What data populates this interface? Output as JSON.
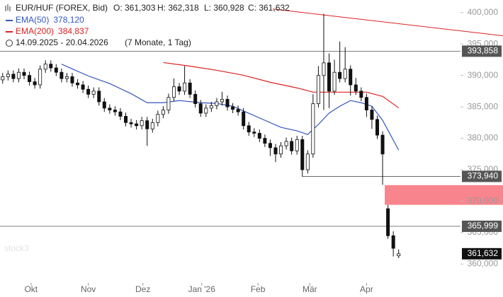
{
  "chart_data": {
    "type": "candlestick",
    "header": {
      "symbol": "EUR/HUF (FOREX, Bid)",
      "open": "O: 361,303",
      "high": "H: 362,318",
      "low": "L: 360,928",
      "close": "C: 361,632",
      "range": "14.09.2025 - 20.04.2026",
      "span": "(7 Monate, 1 Tag)"
    },
    "watermark": "stock3",
    "xlim": [
      -0.5,
      93.5
    ],
    "xticks": [
      {
        "value": 5.3,
        "label": "Okt"
      },
      {
        "value": 16,
        "label": "Nov"
      },
      {
        "value": 26.2,
        "label": "Dez"
      },
      {
        "value": 37.2,
        "label": "Jan '26"
      },
      {
        "value": 47.7,
        "label": "Feb"
      },
      {
        "value": 57.4,
        "label": "Mär"
      },
      {
        "value": 68,
        "label": "Apr"
      }
    ],
    "ylim": [
      357000,
      402000
    ],
    "yticks": [
      {
        "value": 360000,
        "label": "360,000"
      },
      {
        "value": 365000,
        "label": "365,000"
      },
      {
        "value": 370000,
        "label": "370,000"
      },
      {
        "value": 375000,
        "label": "375,000"
      },
      {
        "value": 380000,
        "label": "380,000"
      },
      {
        "value": 385000,
        "label": "385,000"
      },
      {
        "value": 390000,
        "label": "390,000"
      },
      {
        "value": 395000,
        "label": "395,000"
      },
      {
        "value": 400000,
        "label": "400,000"
      }
    ],
    "candles": {
      "open": [
        389300,
        389800,
        390200,
        389500,
        390500,
        390000,
        389000,
        388500,
        391000,
        391800,
        391200,
        390500,
        389500,
        389800,
        388800,
        388500,
        387800,
        387000,
        387500,
        385800,
        384800,
        384500,
        384200,
        383500,
        382500,
        382300,
        382000,
        382800,
        381500,
        382500,
        383800,
        384500,
        386500,
        388200,
        387500,
        388800,
        387000,
        385500,
        384000,
        384800,
        385200,
        385800,
        386200,
        385000,
        384600,
        384200,
        382000,
        381000,
        380800,
        380000,
        379200,
        378500,
        377500,
        378800,
        379500,
        378000,
        379800,
        375000,
        377500,
        385500,
        390000,
        392000,
        387500,
        390500,
        389500,
        391000,
        388500,
        387500,
        386500,
        384500,
        383000,
        380500,
        368800,
        364500,
        361303
      ],
      "high": [
        390400,
        390800,
        390800,
        391100,
        391100,
        390600,
        389600,
        391600,
        392400,
        392400,
        391800,
        391100,
        390400,
        390400,
        389400,
        389100,
        388400,
        388100,
        388100,
        386400,
        385400,
        385100,
        384800,
        384100,
        383100,
        382900,
        383400,
        383400,
        383100,
        384400,
        385100,
        387100,
        389500,
        388800,
        391500,
        389400,
        387600,
        386100,
        385400,
        385800,
        386400,
        387400,
        386800,
        385600,
        385200,
        384800,
        382600,
        381600,
        381400,
        380600,
        379800,
        379100,
        379400,
        380100,
        380100,
        380400,
        380400,
        378100,
        387000,
        391500,
        399800,
        393500,
        392500,
        395400,
        394500,
        391600,
        389600,
        388100,
        387100,
        385100,
        383600,
        381100,
        369400,
        365200,
        362318
      ],
      "low": [
        388700,
        389200,
        388900,
        388900,
        389400,
        388400,
        387900,
        387900,
        390400,
        390600,
        389900,
        388900,
        388900,
        388200,
        387900,
        387200,
        386400,
        386400,
        385200,
        384200,
        383900,
        383600,
        382900,
        381900,
        381700,
        381400,
        381400,
        378800,
        380900,
        381900,
        383200,
        383900,
        385900,
        386900,
        386900,
        386400,
        384900,
        383400,
        383400,
        384200,
        384600,
        385200,
        384400,
        384000,
        383600,
        381400,
        380400,
        380200,
        379400,
        378600,
        377200,
        376200,
        376900,
        378200,
        377400,
        377400,
        373900,
        374400,
        376900,
        384900,
        384500,
        384800,
        386900,
        388900,
        388900,
        386800,
        386900,
        385900,
        383400,
        381500,
        379900,
        372600,
        364000,
        361200,
        360928
      ],
      "close": [
        389800,
        390200,
        389500,
        390500,
        390000,
        389000,
        388500,
        391000,
        391800,
        391200,
        390500,
        389500,
        389800,
        388800,
        388500,
        387800,
        387000,
        387500,
        385800,
        384800,
        384500,
        384200,
        383500,
        382500,
        382300,
        382000,
        382800,
        381500,
        382500,
        383800,
        384500,
        386500,
        388200,
        387500,
        388800,
        387000,
        385500,
        384000,
        384800,
        385200,
        385800,
        386200,
        385000,
        384600,
        384200,
        382000,
        381000,
        380800,
        380000,
        379200,
        378500,
        377500,
        378800,
        379500,
        378000,
        379800,
        375000,
        377500,
        385500,
        390000,
        392000,
        387500,
        390500,
        389500,
        391000,
        388500,
        387500,
        386500,
        384500,
        383000,
        380500,
        377500,
        364500,
        362500,
        361632
      ]
    },
    "series": [
      {
        "name": "EMA(50)",
        "color": "#3355bb",
        "value_label": "378,120",
        "x": [
          11,
          13,
          16,
          20,
          24,
          27,
          30,
          33,
          37,
          40,
          43,
          46,
          49,
          52,
          55,
          57,
          59,
          61,
          63,
          65,
          67,
          69,
          71,
          74
        ],
        "values": [
          391800,
          391040,
          389920,
          388700,
          387100,
          385660,
          385660,
          386000,
          385660,
          385550,
          385100,
          383980,
          382860,
          381740,
          381180,
          380600,
          382200,
          384000,
          385100,
          386000,
          385660,
          385100,
          382860,
          378120
        ]
      },
      {
        "name": "EMA(200)",
        "color": "#dd2222",
        "value_label": "384,837",
        "x": [
          30,
          35,
          40,
          45,
          50,
          55,
          58,
          62,
          68,
          71,
          74
        ],
        "values": [
          392050,
          391480,
          390810,
          390030,
          388910,
          388010,
          387340,
          387340,
          387340,
          386670,
          384837
        ]
      }
    ],
    "levels": [
      {
        "value": 393858,
        "label": "393,858",
        "from": -0.5
      },
      {
        "value": 373940,
        "label": "373,940",
        "from": 56
      },
      {
        "value": 365999,
        "label": "365,999",
        "from": -0.5
      }
    ],
    "zone": {
      "from_x": 71.4,
      "low": 369412,
      "high": 372549
    },
    "trendline": {
      "x": [
        50.5,
        93.5
      ],
      "values": [
        400560,
        396300
      ]
    },
    "last": {
      "value": 361632,
      "label": "361,632"
    }
  }
}
